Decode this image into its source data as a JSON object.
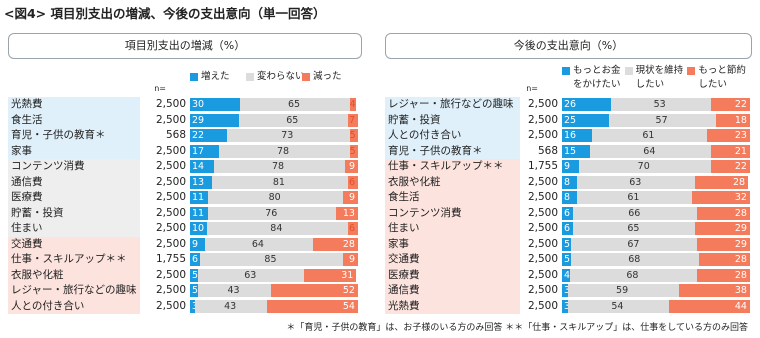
{
  "title": "<図4> 項目別支出の増減、今後の支出意向（単一回答）",
  "footnote": "＊「育児・子供の教育」は、お子様のいる方のみ回答 ＊＊「仕事・スキルアップ」は、仕事をしている方のみ回答",
  "chart_data": [
    {
      "type": "bar",
      "stacked": true,
      "orientation": "horizontal",
      "header": "項目別支出の増減（%）",
      "n_label": "n=",
      "categories": [
        "光熱費",
        "食生活",
        "育児・子供の教育＊",
        "家事",
        "コンテンツ消費",
        "通信費",
        "医療費",
        "貯蓄・投資",
        "住まい",
        "交通費",
        "仕事・スキルアップ＊＊",
        "衣服や化粧",
        "レジャー・旅行などの趣味",
        "人との付き合い"
      ],
      "n": [
        "2,500",
        "2,500",
        "568",
        "2,500",
        "2,500",
        "2,500",
        "2,500",
        "2,500",
        "2,500",
        "2,500",
        "1,755",
        "2,500",
        "2,500",
        "2,500"
      ],
      "label_colors": [
        "#dff0fa",
        "#dff0fa",
        "#dff0fa",
        "#dff0fa",
        "#eeeeee",
        "#eeeeee",
        "#eeeeee",
        "#eeeeee",
        "#eeeeee",
        "#fce3de",
        "#fce3de",
        "#fce3de",
        "#fce3de",
        "#fce3de"
      ],
      "xlim": [
        0,
        100
      ],
      "series": [
        {
          "name": "増えた",
          "color": "#1a9be0",
          "values": [
            30,
            29,
            22,
            17,
            14,
            13,
            11,
            11,
            10,
            9,
            6,
            5,
            5,
            3
          ]
        },
        {
          "name": "変わらない",
          "color": "#dcdcdc",
          "values": [
            65,
            65,
            73,
            78,
            78,
            81,
            80,
            76,
            84,
            64,
            85,
            63,
            43,
            43
          ]
        },
        {
          "name": "減った",
          "color": "#f47c5c",
          "values": [
            4,
            7,
            5,
            5,
            9,
            6,
            9,
            13,
            6,
            28,
            9,
            31,
            52,
            54
          ]
        }
      ]
    },
    {
      "type": "bar",
      "stacked": true,
      "orientation": "horizontal",
      "header": "今後の支出意向（%）",
      "n_label": "n=",
      "categories": [
        "レジャー・旅行などの趣味",
        "貯蓄・投資",
        "人との付き合い",
        "育児・子供の教育＊",
        "仕事・スキルアップ＊＊",
        "衣服や化粧",
        "食生活",
        "コンテンツ消費",
        "住まい",
        "家事",
        "交通費",
        "医療費",
        "通信費",
        "光熱費"
      ],
      "n": [
        "2,500",
        "2,500",
        "2,500",
        "568",
        "1,755",
        "2,500",
        "2,500",
        "2,500",
        "2,500",
        "2,500",
        "2,500",
        "2,500",
        "2,500",
        "2,500"
      ],
      "label_colors": [
        "#dff0fa",
        "#dff0fa",
        "#dff0fa",
        "#dff0fa",
        "#fce3de",
        "#fce3de",
        "#fce3de",
        "#fce3de",
        "#fce3de",
        "#fce3de",
        "#fce3de",
        "#fce3de",
        "#fce3de",
        "#fce3de"
      ],
      "xlim": [
        0,
        100
      ],
      "series": [
        {
          "name": "もっとお金をかけたい",
          "color": "#1a9be0",
          "values": [
            26,
            25,
            16,
            15,
            9,
            8,
            8,
            6,
            6,
            5,
            5,
            4,
            3,
            3
          ]
        },
        {
          "name": "現状を維持したい",
          "color": "#dcdcdc",
          "values": [
            53,
            57,
            61,
            64,
            70,
            63,
            61,
            66,
            65,
            67,
            68,
            68,
            59,
            54
          ]
        },
        {
          "name": "もっと節約したい",
          "color": "#f47c5c",
          "values": [
            22,
            18,
            23,
            21,
            22,
            28,
            32,
            28,
            29,
            29,
            28,
            28,
            38,
            44
          ]
        }
      ]
    }
  ]
}
